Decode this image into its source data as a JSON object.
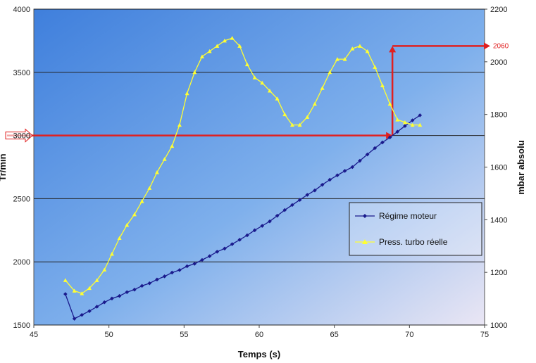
{
  "chart_data": {
    "type": "line",
    "xlabel": "Temps (s)",
    "ylabel_left": "Tr/min",
    "ylabel_right": "mbar absolu",
    "xlim": [
      45,
      75
    ],
    "ylim_left": [
      1500,
      4000
    ],
    "ylim_right": [
      1000,
      2200
    ],
    "x_ticks": [
      "45",
      "50",
      "55",
      "60",
      "65",
      "70",
      "75"
    ],
    "y_left_ticks": [
      "1500",
      "2000",
      "2500",
      "3000",
      "3500",
      "4000"
    ],
    "y_right_ticks": [
      "1000",
      "1200",
      "1400",
      "1600",
      "1800",
      "2000",
      "2200"
    ],
    "grid": true,
    "legend_position": "right",
    "series": [
      {
        "name": "Régime moteur",
        "axis": "left",
        "color": "#1a1a8c",
        "x": [
          47.1,
          47.7,
          48.2,
          48.7,
          49.2,
          49.7,
          50.2,
          50.7,
          51.2,
          51.7,
          52.2,
          52.7,
          53.2,
          53.7,
          54.2,
          54.7,
          55.2,
          55.7,
          56.2,
          56.7,
          57.2,
          57.7,
          58.2,
          58.7,
          59.2,
          59.7,
          60.2,
          60.7,
          61.2,
          61.7,
          62.2,
          62.7,
          63.2,
          63.7,
          64.2,
          64.7,
          65.2,
          65.7,
          66.2,
          66.7,
          67.2,
          67.7,
          68.2,
          68.7,
          69.2,
          69.7,
          70.2,
          70.7
        ],
        "values": [
          1745,
          1550,
          1580,
          1610,
          1645,
          1680,
          1710,
          1730,
          1760,
          1780,
          1810,
          1830,
          1860,
          1885,
          1915,
          1935,
          1965,
          1985,
          2015,
          2045,
          2080,
          2105,
          2140,
          2175,
          2210,
          2250,
          2285,
          2320,
          2365,
          2410,
          2450,
          2490,
          2530,
          2565,
          2610,
          2650,
          2685,
          2720,
          2750,
          2800,
          2850,
          2900,
          2945,
          2985,
          3030,
          3075,
          3120,
          3160
        ]
      },
      {
        "name": "Press. turbo réelle",
        "axis": "right",
        "color": "#ffff33",
        "x": [
          47.1,
          47.7,
          48.2,
          48.7,
          49.2,
          49.7,
          50.2,
          50.7,
          51.2,
          51.7,
          52.2,
          52.7,
          53.2,
          53.7,
          54.2,
          54.7,
          55.2,
          55.7,
          56.2,
          56.7,
          57.2,
          57.7,
          58.2,
          58.7,
          59.2,
          59.7,
          60.2,
          60.7,
          61.2,
          61.7,
          62.2,
          62.7,
          63.2,
          63.7,
          64.2,
          64.7,
          65.2,
          65.7,
          66.2,
          66.7,
          67.2,
          67.7,
          68.2,
          68.7,
          69.2,
          69.7,
          70.2,
          70.7
        ],
        "values": [
          1170,
          1130,
          1120,
          1140,
          1170,
          1210,
          1270,
          1330,
          1380,
          1420,
          1470,
          1520,
          1580,
          1630,
          1680,
          1760,
          1880,
          1960,
          2020,
          2040,
          2060,
          2080,
          2090,
          2060,
          1990,
          1940,
          1920,
          1890,
          1860,
          1800,
          1760,
          1760,
          1790,
          1840,
          1900,
          1960,
          2010,
          2010,
          2050,
          2060,
          2040,
          1980,
          1910,
          1840,
          1780,
          1770,
          1760,
          1760
        ]
      }
    ],
    "annotations": [
      {
        "label": "",
        "axis": "left",
        "value": 3000,
        "note": "horizontal arrow at 3000"
      },
      {
        "label": "2060",
        "axis": "right",
        "value": 2060,
        "note": "step arrow to right axis"
      }
    ]
  }
}
